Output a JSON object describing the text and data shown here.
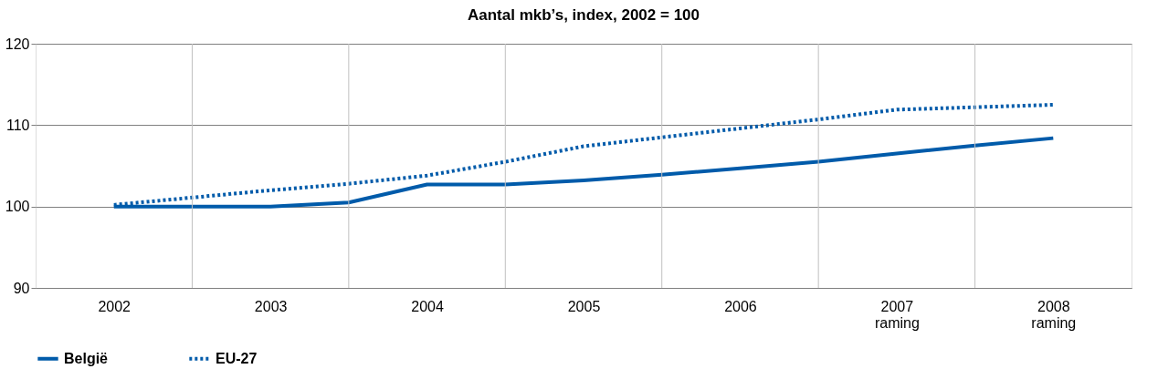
{
  "chart_data": {
    "type": "line",
    "title": "Aantal mkb’s, index, 2002 = 100",
    "categories": [
      "2002",
      null,
      "2003",
      null,
      "2004",
      null,
      "2005",
      null,
      "2006",
      null,
      "2007\nraming",
      null,
      "2008\nraming"
    ],
    "series": [
      {
        "name": "België",
        "color": "#005baa",
        "line_style": "solid",
        "values": [
          100.0,
          100.0,
          100.0,
          100.5,
          102.7,
          102.7,
          103.2,
          103.9,
          104.7,
          105.5,
          106.5,
          107.5,
          108.4
        ]
      },
      {
        "name": "EU-27",
        "color": "#005baa",
        "line_style": "dotted",
        "values": [
          100.2,
          101.1,
          102.0,
          102.8,
          103.8,
          105.5,
          107.4,
          108.5,
          109.6,
          110.7,
          111.9,
          112.2,
          112.5
        ]
      }
    ],
    "ylim": [
      90,
      120
    ],
    "yticks": [
      90,
      100,
      110,
      120
    ],
    "grid": true,
    "legend": "bottom",
    "marker": "none"
  }
}
